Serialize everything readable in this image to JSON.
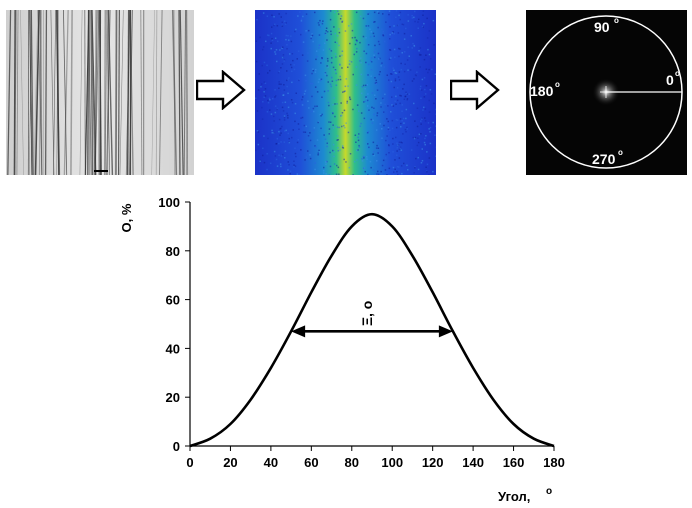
{
  "polar_labels": {
    "top": "90",
    "right": "0",
    "left": "180",
    "bottom": "270",
    "degree_mark": "o"
  },
  "chart_data": {
    "type": "line",
    "xlabel": "Угол,",
    "xlabel_unit": "o",
    "ylabel": "O, %",
    "xlim": [
      0,
      180
    ],
    "ylim": [
      0,
      100
    ],
    "xticks": [
      0,
      20,
      40,
      60,
      80,
      100,
      120,
      140,
      160,
      180
    ],
    "yticks": [
      0,
      20,
      40,
      60,
      80,
      100
    ],
    "series": [
      {
        "x": [
          0,
          10,
          20,
          30,
          40,
          50,
          60,
          70,
          80,
          90,
          100,
          110,
          120,
          130,
          140,
          150,
          160,
          170,
          180
        ],
        "values": [
          0,
          3,
          9,
          19,
          32,
          47,
          63,
          78,
          90,
          95,
          90,
          78,
          63,
          47,
          32,
          19,
          9,
          3,
          0
        ]
      }
    ],
    "annotation": {
      "label": "Ξ, o",
      "x_start": 50,
      "x_end": 130,
      "y": 47
    }
  },
  "colors": {
    "line": "#000000",
    "fft_low": "#1b3fd6",
    "fft_high": "#d8e21a"
  }
}
